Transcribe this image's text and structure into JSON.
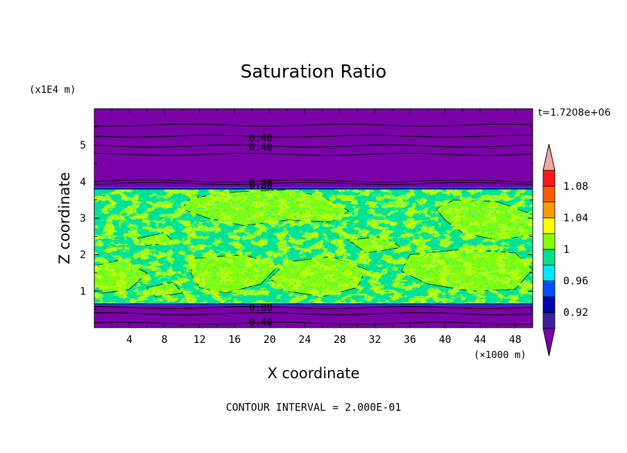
{
  "chart_data": {
    "type": "heatmap",
    "title": "Saturation Ratio",
    "xlabel": "X coordinate",
    "ylabel": "Z coordinate",
    "x_units": "(×1000 m)",
    "y_units": "(x1E4 m)",
    "time_label": "t=1.7208e+06",
    "footer": "CONTOUR INTERVAL = 2.000E-01",
    "xlim": [
      0,
      50
    ],
    "ylim": [
      0,
      6
    ],
    "x_ticks": [
      "4",
      "8",
      "12",
      "16",
      "20",
      "24",
      "28",
      "32",
      "36",
      "40",
      "44",
      "48"
    ],
    "y_ticks": [
      "1",
      "2",
      "3",
      "4",
      "5"
    ],
    "colorbar": {
      "labels": [
        "0.92",
        "0.96",
        "1",
        "1.04",
        "1.08"
      ],
      "levels": [
        {
          "lower": null,
          "upper": 0.9,
          "color": "#7a00a8"
        },
        {
          "lower": 0.9,
          "upper": 0.92,
          "color": "#3f1fa0"
        },
        {
          "lower": 0.92,
          "upper": 0.94,
          "color": "#0000b0"
        },
        {
          "lower": 0.94,
          "upper": 0.96,
          "color": "#0050ff"
        },
        {
          "lower": 0.96,
          "upper": 0.98,
          "color": "#00e8ff"
        },
        {
          "lower": 0.98,
          "upper": 1.0,
          "color": "#00e090"
        },
        {
          "lower": 1.0,
          "upper": 1.02,
          "color": "#88ff00"
        },
        {
          "lower": 1.02,
          "upper": 1.04,
          "color": "#ffff00"
        },
        {
          "lower": 1.04,
          "upper": 1.06,
          "color": "#ff9a00"
        },
        {
          "lower": 1.06,
          "upper": 1.08,
          "color": "#ff5a00"
        },
        {
          "lower": 1.08,
          "upper": 1.1,
          "color": "#ff1a1a"
        },
        {
          "lower": 1.1,
          "upper": null,
          "color": "#f4a6a0"
        }
      ]
    },
    "contour_labels": [
      {
        "text": "0.40",
        "x": 19,
        "z": 5.2
      },
      {
        "text": "0.40",
        "x": 19,
        "z": 4.95
      },
      {
        "text": "0.80",
        "x": 19,
        "z": 3.98
      },
      {
        "text": "0.80",
        "x": 19,
        "z": 3.9
      },
      {
        "text": "0.80",
        "x": 19,
        "z": 0.55
      },
      {
        "text": "0.40",
        "x": 19,
        "z": 0.15
      }
    ],
    "regions": {
      "dry_color": "#7a00a8",
      "moist_layer_z": [
        0.65,
        3.8
      ],
      "moist_color": "#00e090",
      "supersaturated_color": "#88ff00",
      "transition_color": "#0050ff"
    }
  }
}
